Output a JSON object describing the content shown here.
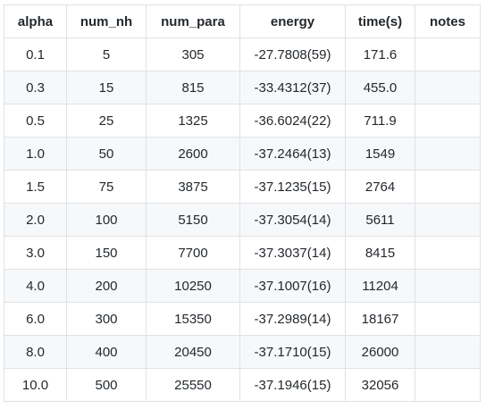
{
  "table": {
    "headers": [
      "alpha",
      "num_nh",
      "num_para",
      "energy",
      "time(s)",
      "notes"
    ],
    "rows": [
      [
        "0.1",
        "5",
        "305",
        "-27.7808(59)",
        "171.6",
        ""
      ],
      [
        "0.3",
        "15",
        "815",
        "-33.4312(37)",
        "455.0",
        ""
      ],
      [
        "0.5",
        "25",
        "1325",
        "-36.6024(22)",
        "711.9",
        ""
      ],
      [
        "1.0",
        "50",
        "2600",
        "-37.2464(13)",
        "1549",
        ""
      ],
      [
        "1.5",
        "75",
        "3875",
        "-37.1235(15)",
        "2764",
        ""
      ],
      [
        "2.0",
        "100",
        "5150",
        "-37.3054(14)",
        "5611",
        ""
      ],
      [
        "3.0",
        "150",
        "7700",
        "-37.3037(14)",
        "8415",
        ""
      ],
      [
        "4.0",
        "200",
        "10250",
        "-37.1007(16)",
        "11204",
        ""
      ],
      [
        "6.0",
        "300",
        "15350",
        "-37.2989(14)",
        "18167",
        ""
      ],
      [
        "8.0",
        "400",
        "20450",
        "-37.1710(15)",
        "26000",
        ""
      ],
      [
        "10.0",
        "500",
        "25550",
        "-37.1946(15)",
        "32056",
        ""
      ]
    ]
  }
}
